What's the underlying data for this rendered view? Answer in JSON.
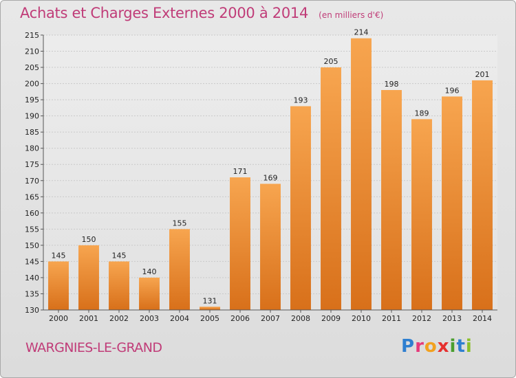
{
  "chart_data": {
    "type": "bar",
    "title": "Achats et Charges Externes 2000 à 2014",
    "subtitle": "(en milliers d'€)",
    "categories": [
      "2000",
      "2001",
      "2002",
      "2003",
      "2004",
      "2005",
      "2006",
      "2007",
      "2008",
      "2009",
      "2010",
      "2011",
      "2012",
      "2013",
      "2014"
    ],
    "values": [
      145,
      150,
      145,
      140,
      155,
      131,
      171,
      169,
      193,
      205,
      214,
      198,
      189,
      196,
      201
    ],
    "xlabel": "",
    "ylabel": "",
    "ylim": [
      130,
      215
    ],
    "yticks": [
      130,
      135,
      140,
      145,
      150,
      155,
      160,
      165,
      170,
      175,
      180,
      185,
      190,
      195,
      200,
      205,
      210,
      215
    ],
    "grid": true,
    "legend": "none",
    "bar_color_top": "#f7a54f",
    "bar_color_bottom": "#d8701a"
  },
  "commune": "WARGNIES-LE-GRAND",
  "logo": {
    "text": "Proxiti",
    "letters": [
      {
        "ch": "P",
        "color": "#2e7fd0"
      },
      {
        "ch": "r",
        "color": "#e63a7a"
      },
      {
        "ch": "o",
        "color": "#f2a11f"
      },
      {
        "ch": "x",
        "color": "#e6302f"
      },
      {
        "ch": "i",
        "color": "#4a9e2f"
      },
      {
        "ch": "t",
        "color": "#2e7fd0"
      },
      {
        "ch": "i",
        "color": "#8bbf2a"
      }
    ]
  }
}
